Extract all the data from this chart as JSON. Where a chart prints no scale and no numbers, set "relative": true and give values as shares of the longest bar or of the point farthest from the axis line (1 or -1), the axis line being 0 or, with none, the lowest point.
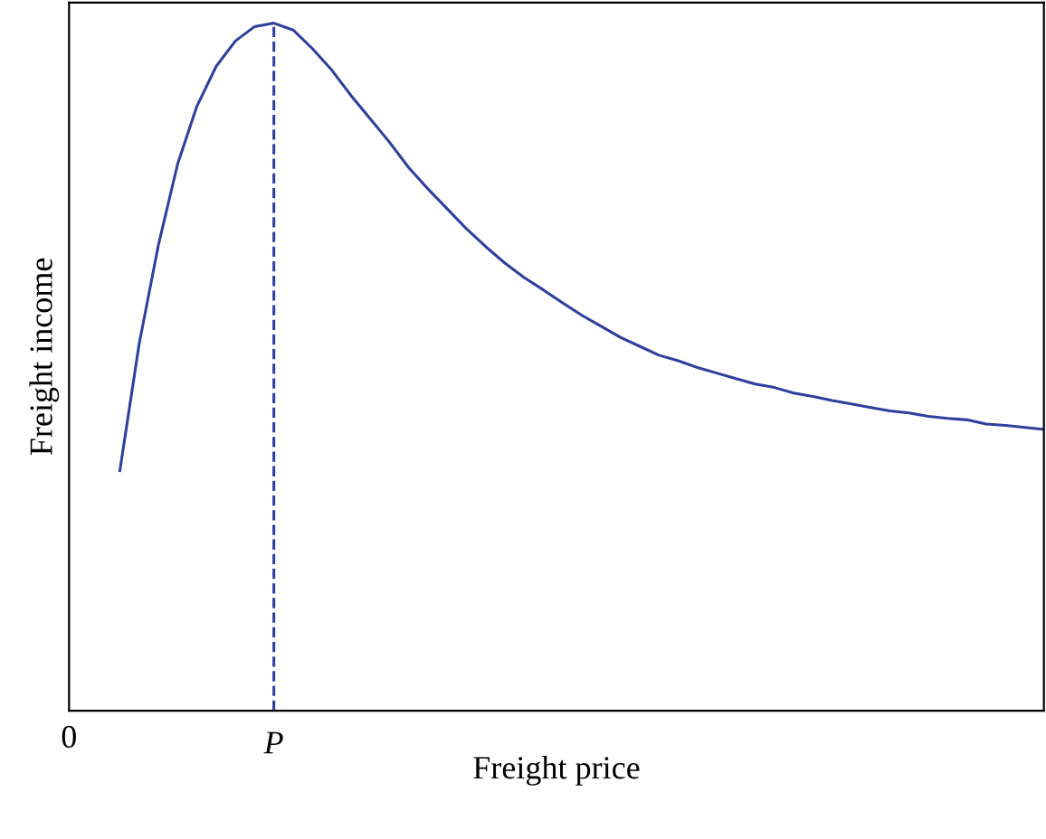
{
  "chart_data": {
    "type": "line",
    "relative": true,
    "xlabel": "Freight price",
    "ylabel": "Freight income",
    "categories": [
      null,
      null,
      null,
      null,
      null,
      null,
      null,
      null,
      null,
      null,
      null,
      null,
      null,
      null,
      null,
      null,
      null,
      null,
      null,
      null,
      null,
      null,
      null,
      null,
      null,
      null,
      null,
      null,
      null,
      null,
      null,
      null,
      null,
      null,
      null,
      null,
      null,
      null,
      null,
      null,
      null,
      null,
      null,
      null,
      null,
      null,
      null,
      null,
      null
    ],
    "series": [
      {
        "color": "#2e3f9e",
        "values": [
          0.349,
          0.533,
          0.677,
          0.795,
          0.879,
          0.937,
          0.974,
          0.995,
          1.0,
          0.99,
          0.963,
          0.932,
          0.895,
          0.861,
          0.827,
          0.79,
          0.759,
          0.73,
          0.701,
          0.675,
          0.651,
          0.63,
          0.612,
          0.593,
          0.575,
          0.559,
          0.543,
          0.53,
          0.517,
          0.509,
          0.499,
          0.491,
          0.483,
          0.475,
          0.47,
          0.462,
          0.457,
          0.451,
          0.446,
          0.441,
          0.436,
          0.433,
          0.428,
          0.425,
          0.423,
          0.417,
          0.415,
          0.412,
          0.409
        ]
      }
    ],
    "annotations": [
      "0"
    ],
    "ref_lines": [
      {
        "axis": "x",
        "label": "P",
        "color": "#2e3f9e",
        "line_style": "dashed"
      }
    ],
    "grid": false,
    "legend": false,
    "marker": "none",
    "line_style": "solid"
  }
}
